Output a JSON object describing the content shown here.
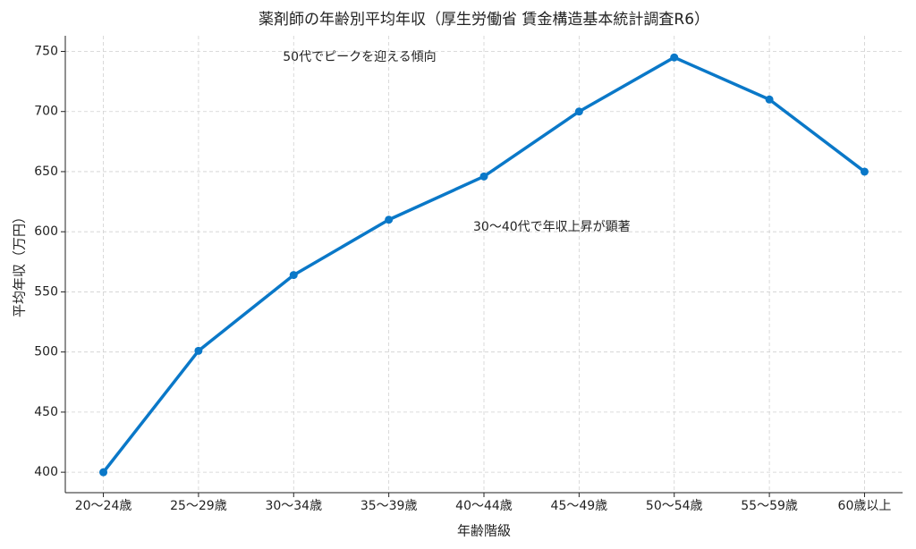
{
  "chart_data": {
    "type": "line",
    "title": "薬剤師の年齢別平均年収（厚生労働省 賃金構造基本統計調査R6）",
    "xlabel": "年齢階級",
    "ylabel": "平均年収（万円）",
    "categories": [
      "20〜24歳",
      "25〜29歳",
      "30〜34歳",
      "35〜39歳",
      "40〜44歳",
      "45〜49歳",
      "50〜54歳",
      "55〜59歳",
      "60歳以上"
    ],
    "values": [
      400,
      501,
      564,
      610,
      646,
      700,
      745,
      710,
      650
    ],
    "color": "#0a78c8",
    "ylim": [
      383,
      763
    ],
    "yticks": [
      400,
      450,
      500,
      550,
      600,
      650,
      700,
      750
    ],
    "grid": true,
    "annotations": [
      "50代でピークを迎える傾向",
      "30〜40代で年収上昇が顕著"
    ]
  }
}
